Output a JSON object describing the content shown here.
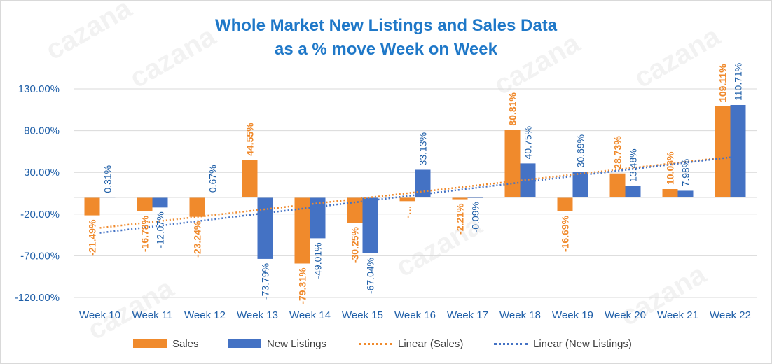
{
  "watermark": "cazana",
  "chart_data": {
    "type": "bar",
    "title": "Whole Market New Listings and Sales Data",
    "subtitle": "as a % move Week on Week",
    "categories": [
      "Week 10",
      "Week 11",
      "Week 12",
      "Week 13",
      "Week 14",
      "Week 15",
      "Week 16",
      "Week 17",
      "Week 18",
      "Week 19",
      "Week 20",
      "Week 21",
      "Week 22"
    ],
    "series": [
      {
        "name": "Sales",
        "color": "#f08a2c",
        "values": [
          -21.49,
          -16.78,
          -23.24,
          44.55,
          -79.31,
          -30.25,
          -4.5,
          -2.21,
          80.81,
          -16.69,
          28.73,
          10.03,
          109.11
        ],
        "labels": [
          "-21.49%",
          "-16.78%",
          "-23.24%",
          "44.55%",
          "-79.31%",
          "-30.25%",
          "-…",
          "-2.21%",
          "80.81%",
          "-16.69%",
          "28.73%",
          "10.03%",
          "109.11%"
        ]
      },
      {
        "name": "New Listings",
        "color": "#4472c4",
        "values": [
          0.31,
          -12.07,
          0.67,
          -73.79,
          -49.01,
          -67.04,
          33.13,
          -0.09,
          40.75,
          30.69,
          13.48,
          7.98,
          110.71
        ],
        "labels": [
          "0.31%",
          "-12.07%",
          "0.67%",
          "-73.79%",
          "-49.01%",
          "-67.04%",
          "33.13%",
          "-0.09%",
          "40.75%",
          "30.69%",
          "13.48%",
          "7.98%",
          "110.71%"
        ]
      }
    ],
    "trendlines": [
      {
        "name": "Linear (Sales)",
        "color": "#f08a2c"
      },
      {
        "name": "Linear (New Listings)",
        "color": "#4472c4"
      }
    ],
    "yticks": [
      "130.00%",
      "80.00%",
      "30.00%",
      "-20.00%",
      "-70.00%",
      "-120.00%"
    ],
    "ytick_values": [
      130,
      80,
      30,
      -20,
      -70,
      -120
    ],
    "ylim": [
      -120,
      130
    ],
    "grid": true,
    "legend_position": "bottom"
  }
}
